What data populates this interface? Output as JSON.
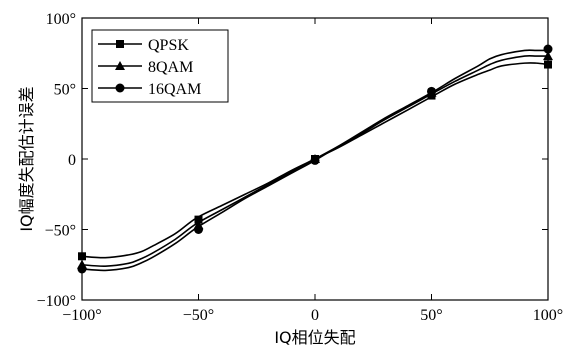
{
  "chart_data": {
    "type": "line",
    "xlabel": "IQ相位失配",
    "ylabel": "IQ幅度失配估计误差",
    "xlim": [
      -100,
      100
    ],
    "ylim": [
      -100,
      100
    ],
    "xticks": [
      {
        "value": -100,
        "label": "−100°"
      },
      {
        "value": -50,
        "label": "−50°"
      },
      {
        "value": 0,
        "label": "0"
      },
      {
        "value": 50,
        "label": "50°"
      },
      {
        "value": 100,
        "label": "100°"
      }
    ],
    "yticks": [
      {
        "value": -100,
        "label": "−100°"
      },
      {
        "value": -50,
        "label": "−50°"
      },
      {
        "value": 0,
        "label": "0"
      },
      {
        "value": 50,
        "label": "50°"
      },
      {
        "value": 100,
        "label": "100°"
      }
    ],
    "legend_position": "top-left",
    "grid": false,
    "series": [
      {
        "name": "QPSK",
        "marker": "square",
        "x": [
          -100,
          -90,
          -80,
          -75,
          -70,
          -60,
          -51,
          -40,
          -30,
          -20,
          -10,
          0,
          10,
          20,
          30,
          40,
          51,
          60,
          70,
          75,
          80,
          90,
          95,
          100
        ],
        "y": [
          -69,
          -70,
          -68,
          -66,
          -62,
          -53,
          -42,
          -33,
          -25,
          -17,
          -8,
          0,
          8,
          17,
          26,
          35,
          45,
          53,
          60,
          63,
          66,
          68,
          68,
          67
        ],
        "marker_x": [
          -100,
          -50,
          0,
          50,
          100
        ],
        "marker_y": [
          -69,
          -43,
          0,
          45,
          67
        ]
      },
      {
        "name": "8QAM",
        "marker": "triangle",
        "x": [
          -100,
          -90,
          -80,
          -75,
          -70,
          -60,
          -51,
          -40,
          -30,
          -20,
          -10,
          0,
          10,
          20,
          30,
          40,
          51,
          60,
          70,
          75,
          80,
          90,
          95,
          100
        ],
        "y": [
          -75,
          -76,
          -74,
          -71,
          -67,
          -57,
          -46,
          -36,
          -27,
          -18,
          -9,
          0,
          9,
          18,
          28,
          37,
          47,
          55,
          63,
          67,
          70,
          73,
          73,
          73
        ],
        "marker_x": [
          -100,
          -50,
          0,
          50,
          100
        ],
        "marker_y": [
          -75,
          -47,
          0,
          47,
          73
        ]
      },
      {
        "name": "16QAM",
        "marker": "circle",
        "x": [
          -100,
          -90,
          -80,
          -75,
          -70,
          -60,
          -51,
          -40,
          -30,
          -20,
          -10,
          0,
          10,
          20,
          30,
          40,
          51,
          60,
          70,
          75,
          80,
          90,
          95,
          100
        ],
        "y": [
          -78,
          -79,
          -77,
          -74,
          -70,
          -60,
          -49,
          -38,
          -28,
          -19,
          -10,
          -1,
          9,
          19,
          29,
          38,
          48,
          57,
          66,
          71,
          74,
          77,
          77,
          77
        ],
        "marker_x": [
          -100,
          -50,
          0,
          50,
          100
        ],
        "marker_y": [
          -78,
          -50,
          -1,
          48,
          78
        ]
      }
    ]
  }
}
